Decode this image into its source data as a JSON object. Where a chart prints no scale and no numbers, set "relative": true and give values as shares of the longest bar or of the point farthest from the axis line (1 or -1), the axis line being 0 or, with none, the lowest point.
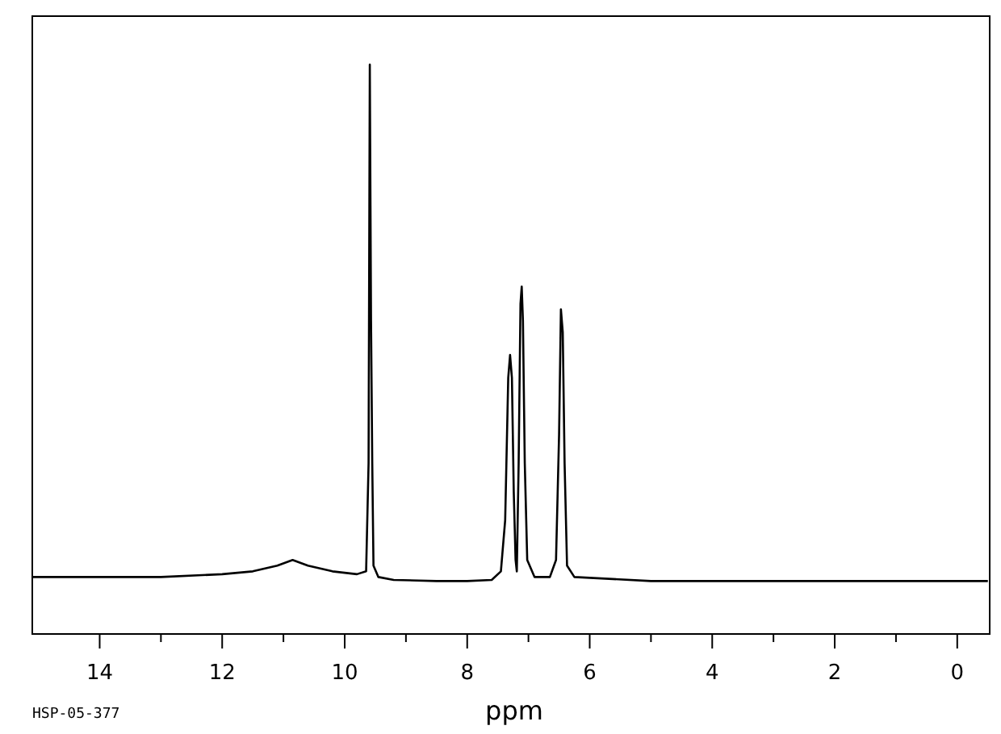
{
  "chart_data": {
    "type": "line",
    "relative": true,
    "xlabel": "ppm",
    "annotations": [
      "HSP-05-377"
    ],
    "xlim": [
      15.1,
      -0.53
    ],
    "xticks": [
      14,
      {
        "value": 13,
        "label": null
      },
      12,
      {
        "value": 11,
        "label": null
      },
      10,
      {
        "value": 9,
        "label": null
      },
      8,
      {
        "value": 7,
        "label": null
      },
      6,
      {
        "value": 5,
        "label": null
      },
      4,
      {
        "value": 3,
        "label": null
      },
      2,
      {
        "value": 1,
        "label": null
      },
      0
    ],
    "line_style": "solid",
    "series": [
      {
        "color": "#000000",
        "x": [
          15.1,
          14,
          13,
          12,
          11.5,
          11.1,
          10.85,
          10.6,
          10.2,
          9.8,
          9.65,
          9.61,
          9.59,
          9.57,
          9.55,
          9.53,
          9.45,
          9.2,
          8.5,
          8,
          7.6,
          7.45,
          7.38,
          7.33,
          7.3,
          7.27,
          7.24,
          7.21,
          7.19,
          7.16,
          7.13,
          7.11,
          7.09,
          7.06,
          7.02,
          6.9,
          6.65,
          6.55,
          6.5,
          6.47,
          6.44,
          6.41,
          6.37,
          6.25,
          5,
          3,
          1,
          -0.5
        ],
        "values": [
          0.1,
          0.1,
          0.1,
          0.105,
          0.11,
          0.12,
          0.13,
          0.12,
          0.11,
          0.105,
          0.11,
          0.3,
          1,
          0.55,
          0.3,
          0.12,
          0.1,
          0.095,
          0.093,
          0.093,
          0.095,
          0.11,
          0.2,
          0.45,
          0.49,
          0.45,
          0.25,
          0.13,
          0.11,
          0.3,
          0.58,
          0.61,
          0.55,
          0.3,
          0.13,
          0.1,
          0.1,
          0.13,
          0.35,
          0.57,
          0.53,
          0.3,
          0.12,
          0.1,
          0.093,
          0.093,
          0.093,
          0.093
        ]
      }
    ]
  }
}
